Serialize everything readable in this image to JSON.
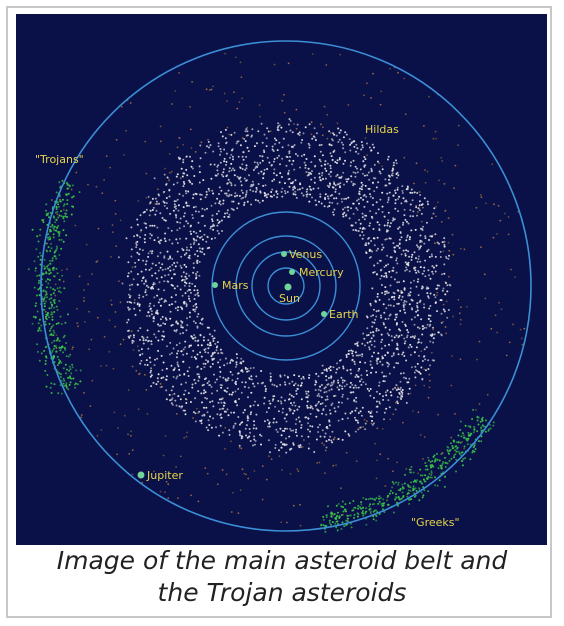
{
  "figure": {
    "labels": {
      "sun": "Sun",
      "mercury": "Mercury",
      "venus": "Venus",
      "earth": "Earth",
      "mars": "Mars",
      "jupiter": "Jupiter",
      "trojans": "\"Trojans\"",
      "greeks": "\"Greeks\"",
      "hildas": "Hildas"
    },
    "caption_line1": "Image of the main asteroid belt and",
    "caption_line2": "the Trojan asteroids"
  },
  "colors": {
    "space": "#0a1048",
    "orbit": "#3b8fd6",
    "label": "#e6d44a",
    "planet": "#6fd39a",
    "belt": "#e8e8e8",
    "trojans": "#3bc94a",
    "hildas": "#b07a3a"
  }
}
